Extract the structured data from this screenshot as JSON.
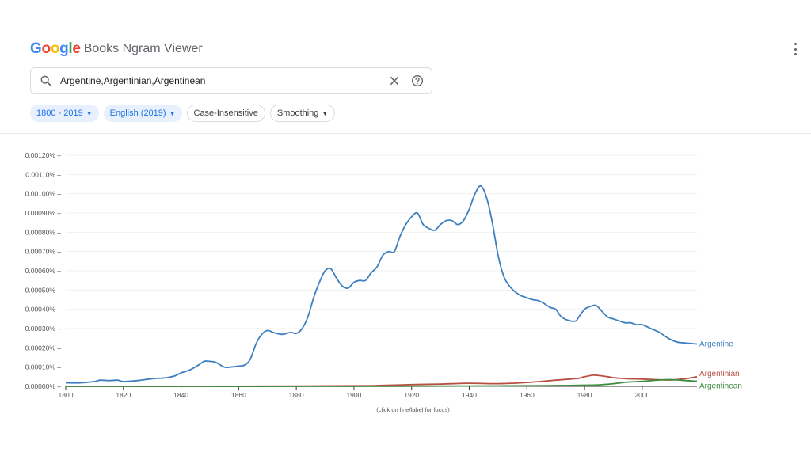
{
  "header": {
    "logo_letters": [
      {
        "ch": "G",
        "color": "#4285F4"
      },
      {
        "ch": "o",
        "color": "#EA4335"
      },
      {
        "ch": "o",
        "color": "#FBBC05"
      },
      {
        "ch": "g",
        "color": "#4285F4"
      },
      {
        "ch": "l",
        "color": "#34A853"
      },
      {
        "ch": "e",
        "color": "#EA4335"
      }
    ],
    "app_title": "Books Ngram Viewer"
  },
  "search": {
    "value": "Argentine,Argentinian,Argentinean"
  },
  "filters": {
    "year_range": "1800 - 2019",
    "corpus": "English (2019)",
    "case": "Case-Insensitive",
    "smoothing": "Smoothing"
  },
  "icons": {
    "search": "search-icon",
    "clear": "close-icon",
    "help": "help-icon",
    "menu": "more-vert-icon"
  },
  "chart_data": {
    "type": "line",
    "xlim": [
      1800,
      2019
    ],
    "ylim": [
      0,
      0.0012
    ],
    "grid": true,
    "x_ticks": [
      1800,
      1820,
      1840,
      1860,
      1880,
      1900,
      1920,
      1940,
      1960,
      1980,
      2000
    ],
    "y_ticks": [
      "0.00000%",
      "0.00010%",
      "0.00020%",
      "0.00030%",
      "0.00040%",
      "0.00050%",
      "0.00060%",
      "0.00070%",
      "0.00080%",
      "0.00090%",
      "0.00100%",
      "0.00110%",
      "0.00120%"
    ],
    "y_tick_values": [
      0,
      0.0001,
      0.0002,
      0.0003,
      0.0004,
      0.0005,
      0.0006,
      0.0007,
      0.0008,
      0.0009,
      0.001,
      0.0011,
      0.0012
    ],
    "footer_note": "(click on line/label for focus)",
    "series": [
      {
        "name": "Argentine",
        "color": "#3d7fbf",
        "x": [
          1800,
          1805,
          1810,
          1812,
          1815,
          1818,
          1820,
          1825,
          1830,
          1835,
          1838,
          1840,
          1843,
          1846,
          1848,
          1850,
          1852,
          1855,
          1857,
          1860,
          1862,
          1864,
          1866,
          1868,
          1870,
          1872,
          1875,
          1878,
          1880,
          1882,
          1884,
          1886,
          1888,
          1890,
          1892,
          1894,
          1896,
          1898,
          1900,
          1902,
          1904,
          1906,
          1908,
          1910,
          1912,
          1914,
          1916,
          1918,
          1920,
          1922,
          1924,
          1926,
          1928,
          1930,
          1932,
          1934,
          1936,
          1938,
          1940,
          1942,
          1944,
          1946,
          1948,
          1950,
          1952,
          1954,
          1956,
          1958,
          1960,
          1962,
          1964,
          1966,
          1968,
          1970,
          1972,
          1975,
          1977,
          1978,
          1980,
          1982,
          1984,
          1986,
          1988,
          1990,
          1992,
          1994,
          1996,
          1998,
          2000,
          2003,
          2006,
          2009,
          2012,
          2015,
          2019
        ],
        "y": [
          1.8e-05,
          1.8e-05,
          2.5e-05,
          3.2e-05,
          3e-05,
          3.2e-05,
          2.5e-05,
          3e-05,
          4e-05,
          4.5e-05,
          5.5e-05,
          7e-05,
          8.5e-05,
          0.00011,
          0.00013,
          0.00013,
          0.000125,
          0.0001,
          0.0001,
          0.000105,
          0.00011,
          0.00014,
          0.00022,
          0.00027,
          0.00029,
          0.00028,
          0.00027,
          0.00028,
          0.000275,
          0.0003,
          0.00036,
          0.00046,
          0.00054,
          0.0006,
          0.00061,
          0.00056,
          0.00052,
          0.00051,
          0.00054,
          0.00055,
          0.00055,
          0.00059,
          0.00062,
          0.00068,
          0.0007,
          0.0007,
          0.00078,
          0.00084,
          0.00088,
          0.0009,
          0.00084,
          0.00082,
          0.00081,
          0.00084,
          0.00086,
          0.00086,
          0.00084,
          0.00086,
          0.00092,
          0.001,
          0.00104,
          0.00098,
          0.00085,
          0.00068,
          0.00057,
          0.00052,
          0.00049,
          0.00047,
          0.00046,
          0.00045,
          0.000445,
          0.00043,
          0.00041,
          0.0004,
          0.00036,
          0.00034,
          0.00034,
          0.00036,
          0.0004,
          0.000415,
          0.00042,
          0.00039,
          0.00036,
          0.00035,
          0.00034,
          0.00033,
          0.00033,
          0.00032,
          0.00032,
          0.0003,
          0.00028,
          0.00025,
          0.00023,
          0.000225,
          0.00022
        ]
      },
      {
        "name": "Argentinian",
        "color": "#b74f43",
        "x": [
          1800,
          1850,
          1900,
          1910,
          1920,
          1930,
          1940,
          1950,
          1960,
          1970,
          1975,
          1978,
          1980,
          1983,
          1985,
          1988,
          1990,
          1995,
          2000,
          2005,
          2010,
          2015,
          2019
        ],
        "y": [
          0,
          0,
          3e-06,
          5e-06,
          9e-06,
          1.2e-05,
          1.6e-05,
          1.4e-05,
          2e-05,
          3.2e-05,
          3.8e-05,
          4.2e-05,
          5e-05,
          5.8e-05,
          5.6e-05,
          5e-05,
          4.5e-05,
          4e-05,
          3.8e-05,
          3.5e-05,
          3.3e-05,
          4e-05,
          5e-05
        ]
      },
      {
        "name": "Argentinean",
        "color": "#3e8a3e",
        "x": [
          1800,
          1900,
          1950,
          1970,
          1980,
          1985,
          1990,
          1995,
          2000,
          2005,
          2010,
          2015,
          2019
        ],
        "y": [
          0,
          0,
          2e-06,
          4e-06,
          6e-06,
          8e-06,
          1.4e-05,
          2.2e-05,
          2.6e-05,
          3.2e-05,
          3.5e-05,
          3e-05,
          2.6e-05
        ]
      }
    ]
  }
}
